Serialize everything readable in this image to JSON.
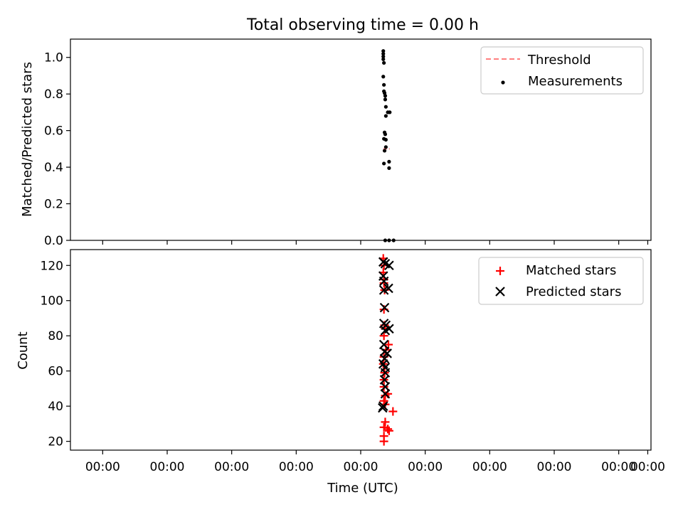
{
  "chart_data": [
    {
      "type": "scatter",
      "title": "Total observing time = 0.00 h",
      "xlabel": "",
      "ylabel": "Matched/Predicted stars",
      "ylim": [
        0.0,
        1.1
      ],
      "xlim": [
        -4.5,
        4.5
      ],
      "yticks": [
        "0.0",
        "0.2",
        "0.4",
        "0.6",
        "0.8",
        "1.0"
      ],
      "xtick_labels_shown": false,
      "legend": {
        "placement": "top-right"
      },
      "series": [
        {
          "name": "Threshold",
          "style": "dashed-line",
          "color": "#ff7f7f",
          "points": [
            [
              0.35,
              0.5
            ],
            [
              0.45,
              0.5
            ]
          ]
        },
        {
          "name": "Measurements",
          "style": "dot",
          "color": "#000000",
          "points": [
            [
              0.35,
              1.035
            ],
            [
              0.35,
              1.02
            ],
            [
              0.35,
              1.005
            ],
            [
              0.35,
              0.99
            ],
            [
              0.36,
              0.97
            ],
            [
              0.35,
              0.895
            ],
            [
              0.36,
              0.85
            ],
            [
              0.36,
              0.815
            ],
            [
              0.37,
              0.805
            ],
            [
              0.38,
              0.79
            ],
            [
              0.38,
              0.77
            ],
            [
              0.39,
              0.73
            ],
            [
              0.42,
              0.7
            ],
            [
              0.45,
              0.7
            ],
            [
              0.39,
              0.68
            ],
            [
              0.37,
              0.59
            ],
            [
              0.38,
              0.58
            ],
            [
              0.36,
              0.555
            ],
            [
              0.39,
              0.55
            ],
            [
              0.39,
              0.51
            ],
            [
              0.37,
              0.49
            ],
            [
              0.36,
              0.42
            ],
            [
              0.44,
              0.43
            ],
            [
              0.44,
              0.395
            ],
            [
              0.38,
              0.0
            ],
            [
              0.44,
              0.0
            ],
            [
              0.51,
              0.0
            ]
          ]
        }
      ]
    },
    {
      "type": "scatter",
      "title": "",
      "xlabel": "Time (UTC)",
      "ylabel": "Count",
      "ylim": [
        15,
        129
      ],
      "xlim": [
        -4.5,
        4.5
      ],
      "yticks": [
        "20",
        "40",
        "60",
        "80",
        "100",
        "120"
      ],
      "xtick_labels": [
        "00:00",
        "00:00",
        "00:00",
        "00:00",
        "00:00",
        "00:00",
        "00:00",
        "00:00",
        "00:00",
        "00:00"
      ],
      "legend": {
        "placement": "top-right"
      },
      "series": [
        {
          "name": "Matched stars",
          "marker": "+",
          "color": "#ff0000",
          "points": [
            [
              0.35,
              124
            ],
            [
              0.36,
              120
            ],
            [
              0.35,
              116
            ],
            [
              0.36,
              112
            ],
            [
              0.36,
              110
            ],
            [
              0.37,
              106
            ],
            [
              0.36,
              95
            ],
            [
              0.37,
              86
            ],
            [
              0.38,
              84
            ],
            [
              0.36,
              80
            ],
            [
              0.43,
              75
            ],
            [
              0.39,
              72
            ],
            [
              0.36,
              68
            ],
            [
              0.35,
              64
            ],
            [
              0.37,
              59
            ],
            [
              0.36,
              55
            ],
            [
              0.36,
              51
            ],
            [
              0.38,
              46
            ],
            [
              0.42,
              47
            ],
            [
              0.36,
              43
            ],
            [
              0.38,
              41
            ],
            [
              0.5,
              37
            ],
            [
              0.38,
              31
            ],
            [
              0.36,
              28
            ],
            [
              0.42,
              27
            ],
            [
              0.44,
              26
            ],
            [
              0.36,
              23
            ],
            [
              0.36,
              20
            ]
          ]
        },
        {
          "name": "Predicted stars",
          "marker": "x",
          "color": "#000000",
          "points": [
            [
              0.35,
              122
            ],
            [
              0.38,
              121
            ],
            [
              0.44,
              120
            ],
            [
              0.35,
              114
            ],
            [
              0.36,
              111
            ],
            [
              0.36,
              106
            ],
            [
              0.43,
              107
            ],
            [
              0.37,
              96
            ],
            [
              0.36,
              87
            ],
            [
              0.39,
              86
            ],
            [
              0.44,
              84
            ],
            [
              0.38,
              83
            ],
            [
              0.36,
              75
            ],
            [
              0.37,
              71
            ],
            [
              0.41,
              70
            ],
            [
              0.37,
              67
            ],
            [
              0.35,
              64
            ],
            [
              0.38,
              62
            ],
            [
              0.38,
              59
            ],
            [
              0.37,
              55
            ],
            [
              0.38,
              51
            ],
            [
              0.38,
              47
            ],
            [
              0.35,
              40
            ],
            [
              0.34,
              39
            ]
          ]
        }
      ]
    }
  ]
}
